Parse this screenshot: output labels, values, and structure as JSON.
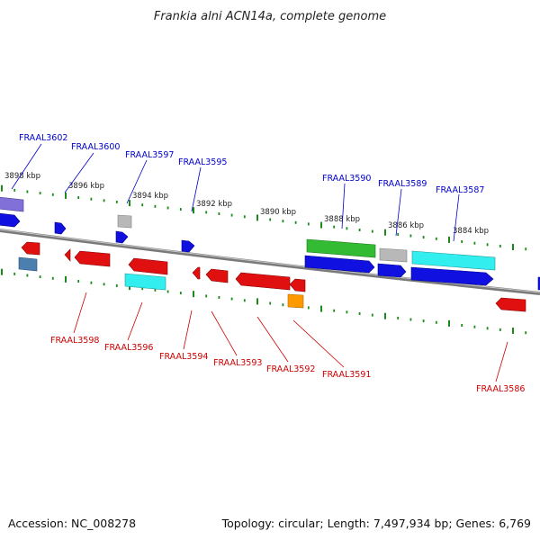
{
  "title": "Frankia alni ACN14a, complete genome",
  "footer": {
    "accession": "Accession: NC_008278",
    "summary": "Topology: circular; Length: 7,497,934 bp; Genes: 6,769"
  },
  "colors": {
    "forward_label": "#0000cc",
    "reverse_label": "#cc0000",
    "tick": "#1a8a1a",
    "backbone": "#7a7a7a",
    "gene_blue": "#1010e0",
    "gene_red": "#e01010",
    "gene_green": "#33bb33",
    "gene_cyan": "#33eeee",
    "gene_gray": "#b8b8b8",
    "gene_purple": "#8070d8",
    "gene_orange": "#ff9900",
    "gene_steelblue": "#4a7fb0"
  },
  "kbp_labels": [
    "3898 kbp",
    "3896 kbp",
    "3894 kbp",
    "3892 kbp",
    "3890 kbp",
    "3888 kbp",
    "3886 kbp",
    "3884 kbp"
  ],
  "forward_gene_labels": [
    "FRAAL3602",
    "FRAAL3600",
    "FRAAL3597",
    "FRAAL3595",
    "FRAAL3590",
    "FRAAL3589",
    "FRAAL3587"
  ],
  "reverse_gene_labels": [
    "FRAAL3598",
    "FRAAL3596",
    "FRAAL3594",
    "FRAAL3593",
    "FRAAL3592",
    "FRAAL3591",
    "FRAAL3586"
  ]
}
